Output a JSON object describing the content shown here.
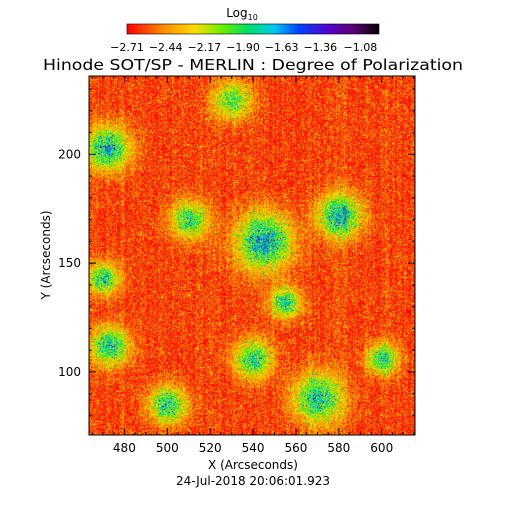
{
  "chart_data": {
    "type": "heatmap",
    "title": "Hinode SOT/SP - MERLIN : Degree of Polarization",
    "footer": "24-Jul-2018 20:06:01.923",
    "xlabel": "X (Arcseconds)",
    "ylabel": "Y (Arcseconds)",
    "xlim": [
      463.5,
      615.5
    ],
    "ylim": [
      71,
      236
    ],
    "xticks": [
      480,
      500,
      520,
      540,
      560,
      580,
      600
    ],
    "yticks": [
      100,
      150,
      200
    ],
    "colorbar": {
      "label_base": "Log",
      "label_sub": "10",
      "range": [
        -2.71,
        -0.95
      ],
      "tick_labels": [
        "-2.71",
        "-2.44",
        "-2.17",
        "-1.90",
        "-1.63",
        "-1.36",
        "-1.08"
      ],
      "stops": [
        {
          "pos": 0.0,
          "color": "#ff0000"
        },
        {
          "pos": 0.14,
          "color": "#ff8800"
        },
        {
          "pos": 0.27,
          "color": "#ffdd00"
        },
        {
          "pos": 0.38,
          "color": "#66ee00"
        },
        {
          "pos": 0.48,
          "color": "#00dd66"
        },
        {
          "pos": 0.58,
          "color": "#00ccee"
        },
        {
          "pos": 0.68,
          "color": "#0044ff"
        },
        {
          "pos": 0.8,
          "color": "#5500cc"
        },
        {
          "pos": 0.9,
          "color": "#5a0070"
        },
        {
          "pos": 1.0,
          "color": "#000000"
        }
      ]
    },
    "background_level": -2.6,
    "features": [
      {
        "x": 545,
        "y": 160,
        "level": -1.7,
        "spread": 9
      },
      {
        "x": 580,
        "y": 172,
        "level": -1.75,
        "spread": 7
      },
      {
        "x": 472,
        "y": 203,
        "level": -1.75,
        "spread": 7
      },
      {
        "x": 473,
        "y": 112,
        "level": -1.8,
        "spread": 6
      },
      {
        "x": 570,
        "y": 88,
        "level": -1.8,
        "spread": 8
      },
      {
        "x": 500,
        "y": 85,
        "level": -1.85,
        "spread": 6
      },
      {
        "x": 540,
        "y": 106,
        "level": -1.85,
        "spread": 6
      },
      {
        "x": 470,
        "y": 143,
        "level": -1.85,
        "spread": 5
      },
      {
        "x": 555,
        "y": 132,
        "level": -1.85,
        "spread": 5
      },
      {
        "x": 510,
        "y": 170,
        "level": -1.9,
        "spread": 6
      },
      {
        "x": 600,
        "y": 106,
        "level": -1.85,
        "spread": 5
      },
      {
        "x": 530,
        "y": 225,
        "level": -1.95,
        "spread": 6
      }
    ]
  }
}
